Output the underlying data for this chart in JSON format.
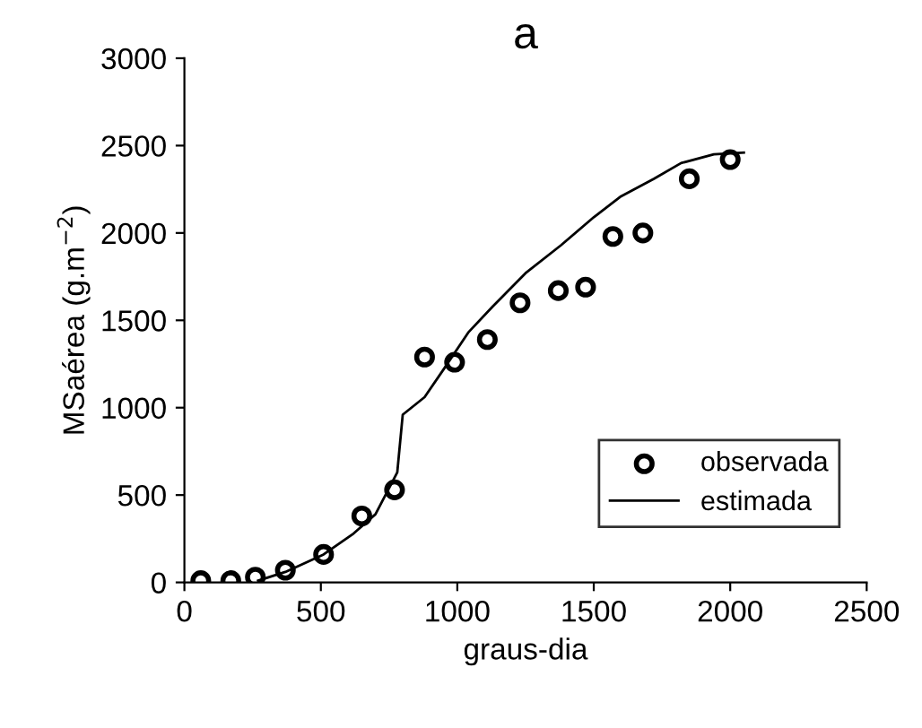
{
  "chart_data": {
    "type": "scatter",
    "title": "a",
    "xlabel": "graus-dia",
    "ylabel": "MSaérea (g.m$^{−2}$)",
    "xlim": [
      0,
      2500
    ],
    "xticks": [
      0,
      500,
      1000,
      1500,
      2000,
      2500
    ],
    "ylim": [
      0,
      3000
    ],
    "yticks": [
      0,
      500,
      1000,
      1500,
      2000,
      2500,
      3000
    ],
    "grid": false,
    "legend": "bottom right",
    "series": [
      {
        "name": "observada",
        "marker": "circle",
        "color": "#000000",
        "x": [
          60,
          170,
          260,
          370,
          510,
          650,
          770,
          880,
          990,
          1110,
          1230,
          1370,
          1470,
          1570,
          1680,
          1850,
          2000
        ],
        "values": [
          10,
          10,
          30,
          70,
          160,
          380,
          530,
          1290,
          1260,
          1390,
          1600,
          1670,
          1690,
          1980,
          2000,
          2310,
          2420
        ]
      },
      {
        "name": "estimada",
        "type": "line",
        "line_style": "solid",
        "color": "#000000",
        "x": [
          270,
          370,
          510,
          620,
          700,
          780,
          800,
          880,
          950,
          1040,
          1130,
          1250,
          1380,
          1500,
          1600,
          1720,
          1820,
          1940,
          2050
        ],
        "values": [
          10,
          60,
          160,
          280,
          390,
          630,
          960,
          1060,
          1220,
          1430,
          1580,
          1770,
          1930,
          2090,
          2210,
          2310,
          2400,
          2450,
          2460
        ]
      }
    ]
  }
}
